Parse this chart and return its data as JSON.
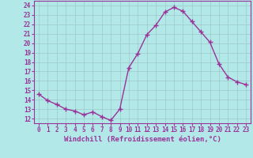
{
  "x": [
    0,
    1,
    2,
    3,
    4,
    5,
    6,
    7,
    8,
    9,
    10,
    11,
    12,
    13,
    14,
    15,
    16,
    17,
    18,
    19,
    20,
    21,
    22,
    23
  ],
  "y": [
    14.6,
    13.9,
    13.5,
    13.0,
    12.8,
    12.4,
    12.7,
    12.2,
    11.8,
    13.0,
    17.4,
    18.9,
    20.9,
    21.9,
    23.3,
    23.8,
    23.4,
    22.3,
    21.2,
    20.1,
    17.8,
    16.4,
    15.9,
    15.6
  ],
  "line_color": "#993399",
  "marker": "+",
  "bg_color": "#b3e8e8",
  "grid_color": "#9ec8c8",
  "xlabel": "Windchill (Refroidissement éolien,°C)",
  "ylabel_ticks": [
    12,
    13,
    14,
    15,
    16,
    17,
    18,
    19,
    20,
    21,
    22,
    23,
    24
  ],
  "xticks": [
    0,
    1,
    2,
    3,
    4,
    5,
    6,
    7,
    8,
    9,
    10,
    11,
    12,
    13,
    14,
    15,
    16,
    17,
    18,
    19,
    20,
    21,
    22,
    23
  ],
  "xlim": [
    -0.5,
    23.5
  ],
  "ylim": [
    11.5,
    24.5
  ],
  "tick_fontsize": 5.5,
  "xlabel_fontsize": 6.5,
  "line_width": 1.0,
  "marker_size": 4
}
